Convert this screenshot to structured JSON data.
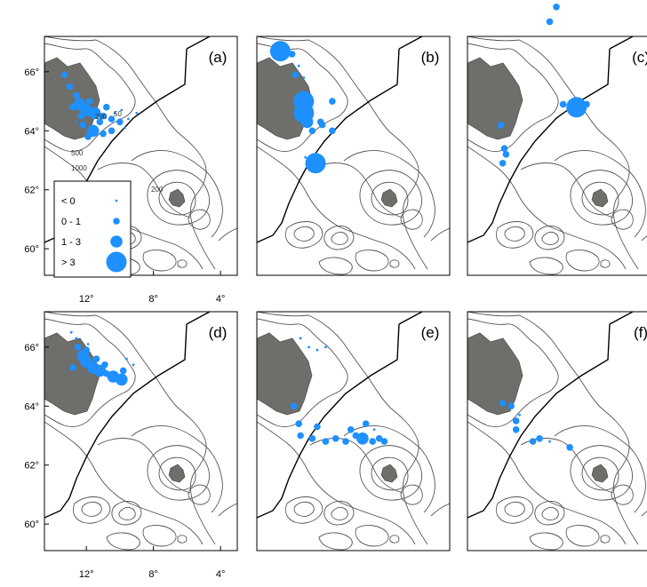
{
  "chart_data": {
    "type": "scatter",
    "lat_ticks": [
      "66°",
      "64°",
      "62°",
      "60°"
    ],
    "lat_values": [
      66,
      64,
      62,
      60
    ],
    "lon_ticks": [
      "12°",
      "8°",
      "4°"
    ],
    "lon_values": [
      12,
      8,
      4
    ],
    "lat_range": [
      59.1,
      67.2
    ],
    "lon_range": [
      14.5,
      3.0
    ],
    "contour_labels": [
      "200",
      "500",
      "1000",
      "200",
      "50"
    ],
    "legend": {
      "entries": [
        {
          "label": "< 0",
          "size": 0
        },
        {
          "label": "0 - 1",
          "size": 1
        },
        {
          "label": "1 - 3",
          "size": 2
        },
        {
          "label": "> 3",
          "size": 3
        }
      ]
    },
    "marker_color": "#1e90ff",
    "land_color": "#6e6e6a",
    "panels": [
      {
        "label": "(a)",
        "points": [
          [
            13.3,
            65.9,
            1
          ],
          [
            13.0,
            65.5,
            1
          ],
          [
            12.6,
            65.2,
            1
          ],
          [
            12.4,
            64.9,
            2
          ],
          [
            12.0,
            64.7,
            2
          ],
          [
            11.5,
            64.6,
            2
          ],
          [
            11.0,
            64.5,
            1
          ],
          [
            10.5,
            64.4,
            1
          ],
          [
            10.0,
            64.3,
            1
          ],
          [
            9.5,
            64.4,
            0
          ],
          [
            9.0,
            64.6,
            0
          ],
          [
            12.2,
            64.2,
            1
          ],
          [
            11.6,
            64.0,
            2
          ],
          [
            11.0,
            63.9,
            1
          ],
          [
            10.5,
            64.0,
            1
          ],
          [
            12.8,
            64.8,
            1
          ],
          [
            11.8,
            65.0,
            1
          ],
          [
            10.8,
            64.8,
            1
          ],
          [
            9.9,
            64.7,
            0
          ],
          [
            12.3,
            64.5,
            1
          ],
          [
            11.2,
            64.3,
            1
          ],
          [
            10.3,
            64.6,
            0
          ],
          [
            9.7,
            64.1,
            0
          ],
          [
            11.9,
            63.8,
            1
          ],
          [
            12.6,
            64.3,
            0
          ]
        ]
      },
      {
        "label": "(b)",
        "points": [
          [
            13.1,
            66.7,
            3
          ],
          [
            12.4,
            66.6,
            1
          ],
          [
            12.0,
            66.2,
            0
          ],
          [
            11.7,
            65.8,
            0
          ],
          [
            12.2,
            65.9,
            1
          ],
          [
            11.7,
            65.0,
            3
          ],
          [
            11.7,
            64.6,
            3
          ],
          [
            11.5,
            64.3,
            2
          ],
          [
            11.2,
            64.0,
            1
          ],
          [
            10.6,
            64.2,
            1
          ],
          [
            10.0,
            64.0,
            1
          ],
          [
            10.0,
            65.0,
            1
          ],
          [
            11.6,
            63.1,
            0
          ],
          [
            11.0,
            62.9,
            3
          ],
          [
            10.7,
            64.3,
            1
          ]
        ]
      },
      {
        "label": "(c)",
        "points": [
          [
            9.2,
            68.2,
            1
          ],
          [
            9.6,
            67.7,
            1
          ],
          [
            8.0,
            64.8,
            3
          ],
          [
            7.4,
            64.9,
            1
          ],
          [
            8.8,
            64.9,
            1
          ],
          [
            12.5,
            64.2,
            1
          ],
          [
            12.6,
            64.1,
            0
          ],
          [
            12.3,
            63.4,
            1
          ],
          [
            12.2,
            63.2,
            1
          ],
          [
            12.4,
            62.9,
            1
          ]
        ]
      },
      {
        "label": "(d)",
        "points": [
          [
            12.9,
            66.5,
            0
          ],
          [
            12.6,
            66.3,
            0
          ],
          [
            12.5,
            66.0,
            1
          ],
          [
            12.2,
            65.7,
            2
          ],
          [
            12.0,
            65.5,
            2
          ],
          [
            11.6,
            65.3,
            2
          ],
          [
            11.2,
            65.2,
            2
          ],
          [
            10.8,
            65.1,
            1
          ],
          [
            10.4,
            65.0,
            2
          ],
          [
            9.8,
            65.2,
            1
          ],
          [
            9.6,
            65.6,
            0
          ],
          [
            9.2,
            65.4,
            0
          ],
          [
            12.8,
            65.3,
            1
          ],
          [
            12.0,
            65.9,
            1
          ],
          [
            11.4,
            65.6,
            1
          ],
          [
            10.9,
            65.4,
            1
          ],
          [
            11.9,
            66.1,
            0
          ],
          [
            9.9,
            64.9,
            2
          ]
        ]
      },
      {
        "label": "(e)",
        "points": [
          [
            11.9,
            66.3,
            0
          ],
          [
            11.4,
            66.0,
            0
          ],
          [
            10.9,
            65.9,
            0
          ],
          [
            10.4,
            66.0,
            0
          ],
          [
            12.3,
            64.0,
            1
          ],
          [
            12.0,
            63.4,
            1
          ],
          [
            11.9,
            63.0,
            1
          ],
          [
            11.2,
            62.9,
            1
          ],
          [
            10.4,
            62.8,
            1
          ],
          [
            9.8,
            62.9,
            1
          ],
          [
            9.2,
            62.8,
            1
          ],
          [
            8.6,
            63.0,
            1
          ],
          [
            8.2,
            62.9,
            2
          ],
          [
            7.6,
            62.8,
            1
          ],
          [
            7.2,
            62.9,
            1
          ],
          [
            8.9,
            63.2,
            1
          ],
          [
            8.0,
            63.4,
            1
          ],
          [
            7.5,
            63.2,
            0
          ],
          [
            6.9,
            62.8,
            1
          ],
          [
            10.9,
            63.3,
            1
          ]
        ]
      },
      {
        "label": "(f)",
        "points": [
          [
            12.4,
            64.1,
            1
          ],
          [
            11.9,
            64.0,
            1
          ],
          [
            11.6,
            63.5,
            1
          ],
          [
            11.6,
            63.2,
            1
          ],
          [
            10.6,
            62.8,
            1
          ],
          [
            10.2,
            62.9,
            1
          ],
          [
            9.6,
            62.8,
            0
          ],
          [
            8.4,
            62.6,
            1
          ],
          [
            11.4,
            63.7,
            0
          ]
        ]
      }
    ]
  }
}
